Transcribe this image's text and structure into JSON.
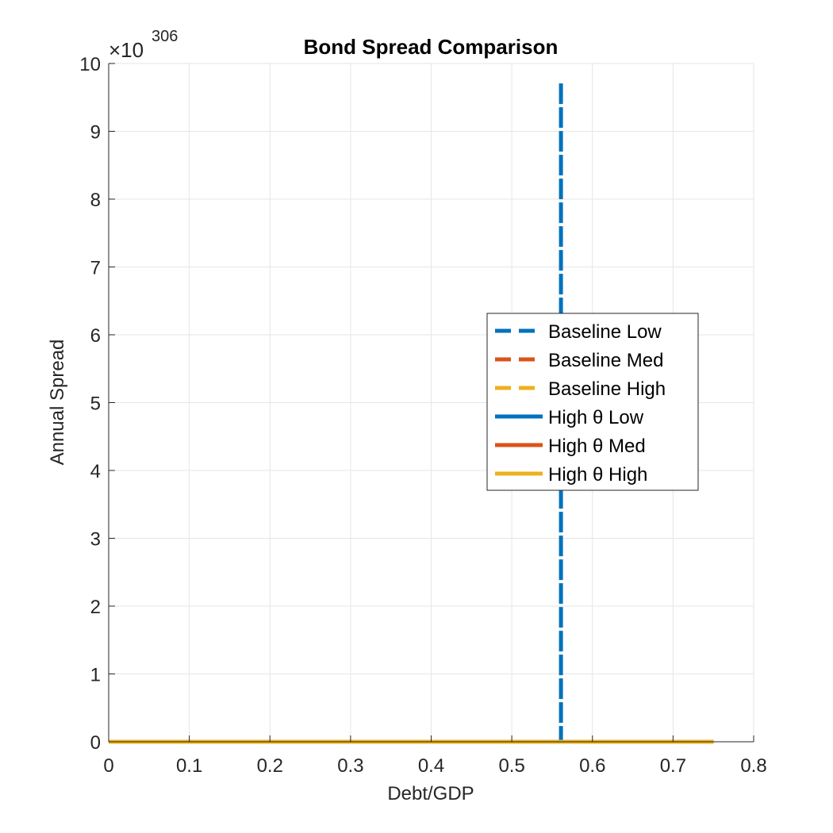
{
  "chart_data": {
    "type": "line",
    "title": "Bond Spread Comparison",
    "xlabel": "Debt/GDP",
    "ylabel": "Annual Spread",
    "xlim": [
      0,
      0.8
    ],
    "ylim": [
      0,
      10
    ],
    "x_ticks": [
      "0",
      "0.1",
      "0.2",
      "0.3",
      "0.4",
      "0.5",
      "0.6",
      "0.7",
      "0.8"
    ],
    "y_ticks": [
      "0",
      "1",
      "2",
      "3",
      "4",
      "5",
      "6",
      "7",
      "8",
      "9",
      "10"
    ],
    "y_exponent": {
      "times": "×10",
      "power": "306"
    },
    "grid": true,
    "legend_position": "right-center",
    "series": [
      {
        "name": "Baseline Low",
        "color": "#0072BD",
        "dash": "dashed",
        "x": [
          0,
          0.561,
          0.561,
          0.561
        ],
        "y": [
          0,
          0,
          9.73,
          0
        ]
      },
      {
        "name": "Baseline Med",
        "color": "#D95319",
        "dash": "dashed",
        "x": [
          0,
          0.75
        ],
        "y": [
          0,
          0
        ]
      },
      {
        "name": "Baseline High",
        "color": "#EDB120",
        "dash": "dashed",
        "x": [
          0,
          0.75
        ],
        "y": [
          0,
          0
        ]
      },
      {
        "name": "High θ Low",
        "color": "#0072BD",
        "dash": "solid",
        "x": [
          0,
          0.75
        ],
        "y": [
          0,
          0
        ]
      },
      {
        "name": "High θ Med",
        "color": "#D95319",
        "dash": "solid",
        "x": [
          0,
          0.75
        ],
        "y": [
          0,
          0
        ]
      },
      {
        "name": "High θ High",
        "color": "#EDB120",
        "dash": "solid",
        "x": [
          0,
          0.75
        ],
        "y": [
          0,
          0
        ]
      }
    ]
  }
}
